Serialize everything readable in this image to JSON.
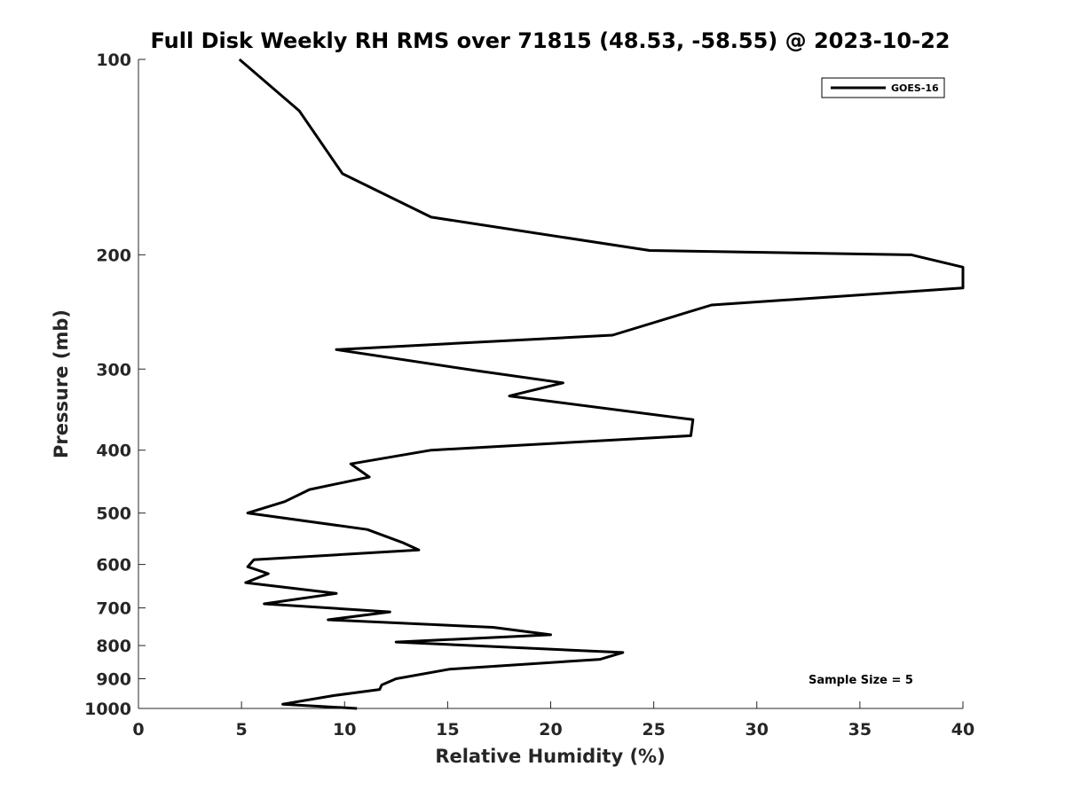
{
  "chart_data": {
    "type": "line",
    "title": "Full Disk Weekly RH RMS over 71815 (48.53, -58.55) @ 2023-10-22",
    "xlabel": "Relative Humidity (%)",
    "ylabel": "Pressure (mb)",
    "xlim": [
      0,
      40
    ],
    "ylim": [
      1000,
      100
    ],
    "yscale": "log",
    "y_reversed": true,
    "x_ticks": [
      "0",
      "5",
      "10",
      "15",
      "20",
      "25",
      "30",
      "35",
      "40"
    ],
    "y_ticks": [
      "100",
      "200",
      "300",
      "400",
      "500",
      "600",
      "700",
      "800",
      "900",
      "1000"
    ],
    "grid": false,
    "legend_position": "top-right",
    "annotation": "Sample Size = 5",
    "series": [
      {
        "name": "GOES-16",
        "color": "#000000",
        "x": [
          4.9,
          7.8,
          9.9,
          14.2,
          24.8,
          37.5,
          40.0,
          40.0,
          27.8,
          23.0,
          9.6,
          16.5,
          20.6,
          18.0,
          26.9,
          26.8,
          14.2,
          10.3,
          11.2,
          8.3,
          7.1,
          5.3,
          11.1,
          12.8,
          13.6,
          5.6,
          5.3,
          6.3,
          5.2,
          9.6,
          6.1,
          12.2,
          9.2,
          17.2,
          20.0,
          12.5,
          23.5,
          22.4,
          15.1,
          12.5,
          11.8,
          11.7,
          9.5,
          7.0,
          10.6
        ],
        "y": [
          100,
          120,
          150,
          175,
          197,
          200,
          209,
          225,
          239,
          266,
          280,
          302,
          315,
          330,
          359,
          380,
          400,
          420,
          440,
          460,
          480,
          500,
          530,
          555,
          570,
          590,
          605,
          620,
          640,
          665,
          690,
          710,
          730,
          750,
          770,
          790,
          820,
          840,
          870,
          900,
          920,
          935,
          955,
          985,
          1000
        ]
      }
    ]
  }
}
